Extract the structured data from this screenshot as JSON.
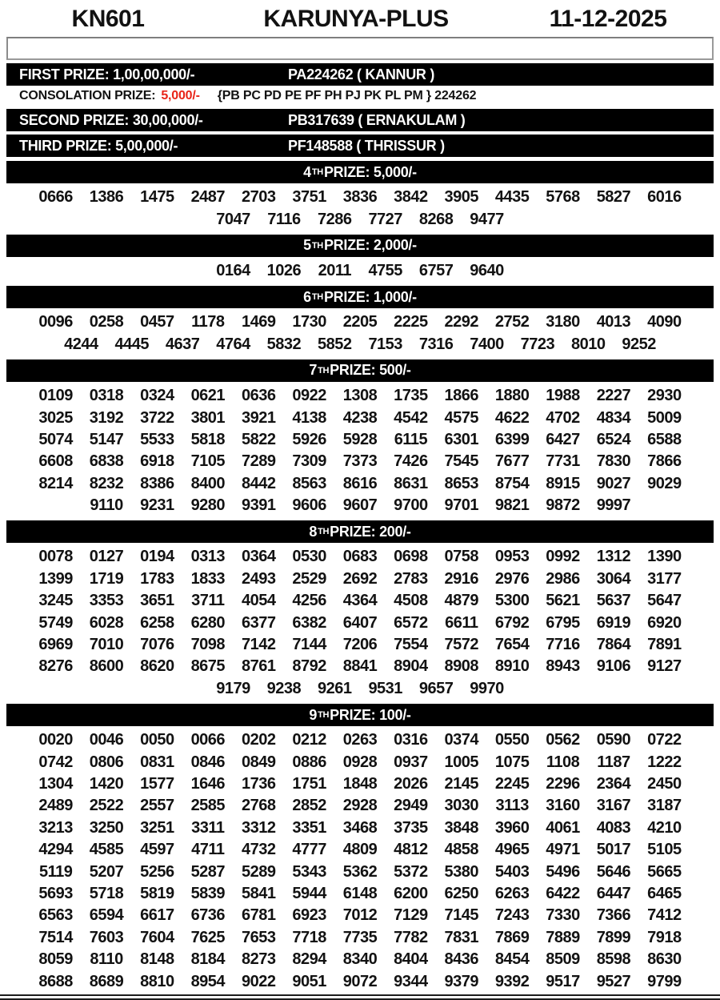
{
  "colors": {
    "bar_bg": "#000000",
    "bar_text": "#ffffff",
    "accent_red": "#e82418"
  },
  "header": {
    "draw_code": "KN601",
    "title": "KARUNYA-PLUS",
    "date": "11-12-2025"
  },
  "top_prizes": [
    {
      "label": "FIRST PRIZE: 1,00,00,000/-",
      "winner": "PA224262 ( KANNUR )"
    },
    {
      "label": "SECOND PRIZE: 30,00,000/-",
      "winner": "PB317639 ( ERNAKULAM )"
    },
    {
      "label": "THIRD PRIZE: 5,00,000/-",
      "winner": "PF148588 ( THRISSUR )"
    }
  ],
  "consolation": {
    "label": "CONSOLATION PRIZE:",
    "amount": "5,000/-",
    "series": "{PB PC PD PE PF PH PJ PK PL PM } 224262"
  },
  "sections": [
    {
      "rank": "4",
      "sup": "TH",
      "rest": " PRIZE: 5,000/-",
      "rows": [
        [
          "0666",
          "1386",
          "1475",
          "2487",
          "2703",
          "3751",
          "3836",
          "3842",
          "3905",
          "4435",
          "5768",
          "5827",
          "6016"
        ],
        [
          "7047",
          "7116",
          "7286",
          "7727",
          "8268",
          "9477"
        ]
      ]
    },
    {
      "rank": "5",
      "sup": "TH",
      "rest": " PRIZE: 2,000/-",
      "rows": [
        [
          "0164",
          "1026",
          "2011",
          "4755",
          "6757",
          "9640"
        ]
      ]
    },
    {
      "rank": "6",
      "sup": "TH",
      "rest": " PRIZE: 1,000/-",
      "rows": [
        [
          "0096",
          "0258",
          "0457",
          "1178",
          "1469",
          "1730",
          "2205",
          "2225",
          "2292",
          "2752",
          "3180",
          "4013",
          "4090"
        ],
        [
          "4244",
          "4445",
          "4637",
          "4764",
          "5832",
          "5852",
          "7153",
          "7316",
          "7400",
          "7723",
          "8010",
          "9252"
        ]
      ]
    },
    {
      "rank": "7",
      "sup": "TH",
      "rest": " PRIZE: 500/-",
      "rows": [
        [
          "0109",
          "0318",
          "0324",
          "0621",
          "0636",
          "0922",
          "1308",
          "1735",
          "1866",
          "1880",
          "1988",
          "2227",
          "2930"
        ],
        [
          "3025",
          "3192",
          "3722",
          "3801",
          "3921",
          "4138",
          "4238",
          "4542",
          "4575",
          "4622",
          "4702",
          "4834",
          "5009"
        ],
        [
          "5074",
          "5147",
          "5533",
          "5818",
          "5822",
          "5926",
          "5928",
          "6115",
          "6301",
          "6399",
          "6427",
          "6524",
          "6588"
        ],
        [
          "6608",
          "6838",
          "6918",
          "7105",
          "7289",
          "7309",
          "7373",
          "7426",
          "7545",
          "7677",
          "7731",
          "7830",
          "7866"
        ],
        [
          "8214",
          "8232",
          "8386",
          "8400",
          "8442",
          "8563",
          "8616",
          "8631",
          "8653",
          "8754",
          "8915",
          "9027",
          "9029"
        ],
        [
          "9110",
          "9231",
          "9280",
          "9391",
          "9606",
          "9607",
          "9700",
          "9701",
          "9821",
          "9872",
          "9997"
        ]
      ]
    },
    {
      "rank": "8",
      "sup": "TH",
      "rest": " PRIZE: 200/-",
      "rows": [
        [
          "0078",
          "0127",
          "0194",
          "0313",
          "0364",
          "0530",
          "0683",
          "0698",
          "0758",
          "0953",
          "0992",
          "1312",
          "1390"
        ],
        [
          "1399",
          "1719",
          "1783",
          "1833",
          "2493",
          "2529",
          "2692",
          "2783",
          "2916",
          "2976",
          "2986",
          "3064",
          "3177"
        ],
        [
          "3245",
          "3353",
          "3651",
          "3711",
          "4054",
          "4256",
          "4364",
          "4508",
          "4879",
          "5300",
          "5621",
          "5637",
          "5647"
        ],
        [
          "5749",
          "6028",
          "6258",
          "6280",
          "6377",
          "6382",
          "6407",
          "6572",
          "6611",
          "6792",
          "6795",
          "6919",
          "6920"
        ],
        [
          "6969",
          "7010",
          "7076",
          "7098",
          "7142",
          "7144",
          "7206",
          "7554",
          "7572",
          "7654",
          "7716",
          "7864",
          "7891"
        ],
        [
          "8276",
          "8600",
          "8620",
          "8675",
          "8761",
          "8792",
          "8841",
          "8904",
          "8908",
          "8910",
          "8943",
          "9106",
          "9127"
        ],
        [
          "9179",
          "9238",
          "9261",
          "9531",
          "9657",
          "9970"
        ]
      ]
    },
    {
      "rank": "9",
      "sup": "TH",
      "rest": " PRIZE: 100/-",
      "rows": [
        [
          "0020",
          "0046",
          "0050",
          "0066",
          "0202",
          "0212",
          "0263",
          "0316",
          "0374",
          "0550",
          "0562",
          "0590",
          "0722"
        ],
        [
          "0742",
          "0806",
          "0831",
          "0846",
          "0849",
          "0886",
          "0928",
          "0937",
          "1005",
          "1075",
          "1108",
          "1187",
          "1222"
        ],
        [
          "1304",
          "1420",
          "1577",
          "1646",
          "1736",
          "1751",
          "1848",
          "2026",
          "2145",
          "2245",
          "2296",
          "2364",
          "2450"
        ],
        [
          "2489",
          "2522",
          "2557",
          "2585",
          "2768",
          "2852",
          "2928",
          "2949",
          "3030",
          "3113",
          "3160",
          "3167",
          "3187"
        ],
        [
          "3213",
          "3250",
          "3251",
          "3311",
          "3312",
          "3351",
          "3468",
          "3735",
          "3848",
          "3960",
          "4061",
          "4083",
          "4210"
        ],
        [
          "4294",
          "4585",
          "4597",
          "4711",
          "4732",
          "4777",
          "4809",
          "4812",
          "4858",
          "4965",
          "4971",
          "5017",
          "5105"
        ],
        [
          "5119",
          "5207",
          "5256",
          "5287",
          "5289",
          "5343",
          "5362",
          "5372",
          "5380",
          "5403",
          "5496",
          "5646",
          "5665"
        ],
        [
          "5693",
          "5718",
          "5819",
          "5839",
          "5841",
          "5944",
          "6148",
          "6200",
          "6250",
          "6263",
          "6422",
          "6447",
          "6465"
        ],
        [
          "6563",
          "6594",
          "6617",
          "6736",
          "6781",
          "6923",
          "7012",
          "7129",
          "7145",
          "7243",
          "7330",
          "7366",
          "7412"
        ],
        [
          "7514",
          "7603",
          "7604",
          "7625",
          "7653",
          "7718",
          "7735",
          "7782",
          "7831",
          "7869",
          "7889",
          "7899",
          "7918"
        ],
        [
          "8059",
          "8110",
          "8148",
          "8184",
          "8273",
          "8294",
          "8340",
          "8404",
          "8436",
          "8454",
          "8509",
          "8598",
          "8630"
        ],
        [
          "8688",
          "8689",
          "8810",
          "8954",
          "9022",
          "9051",
          "9072",
          "9344",
          "9379",
          "9392",
          "9517",
          "9527",
          "9799"
        ]
      ]
    }
  ]
}
